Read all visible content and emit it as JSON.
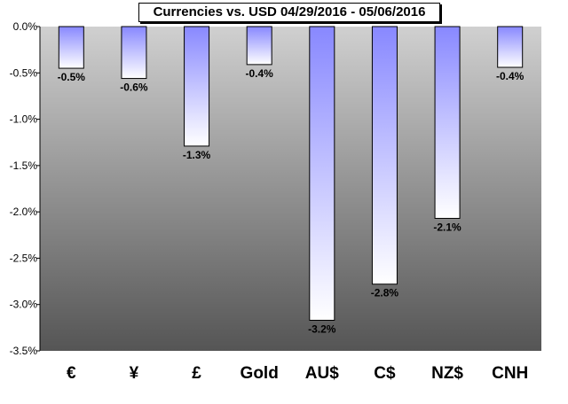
{
  "chart_data": {
    "type": "bar",
    "title": "Currencies vs. USD 04/29/2016 - 05/06/2016",
    "categories": [
      "€",
      "¥",
      "£",
      "Gold",
      "AU$",
      "C$",
      "NZ$",
      "CNH"
    ],
    "values": [
      -0.45,
      -0.56,
      -1.29,
      -0.41,
      -3.17,
      -2.78,
      -2.07,
      -0.44
    ],
    "data_labels": [
      "-0.5%",
      "-0.6%",
      "-1.3%",
      "-0.4%",
      "-3.2%",
      "-2.8%",
      "-2.1%",
      "-0.4%"
    ],
    "ylim": [
      -3.5,
      0
    ],
    "yticks": [
      0,
      -0.5,
      -1.0,
      -1.5,
      -2.0,
      -2.5,
      -3.0,
      -3.5
    ],
    "ytick_labels": [
      "0.0%",
      "-0.5%",
      "-1.0%",
      "-1.5%",
      "-2.0%",
      "-2.5%",
      "-3.0%",
      "-3.5%"
    ],
    "xlabel": "",
    "ylabel": "",
    "grid": false,
    "legend": "none",
    "colors": {
      "plot_bg_top": "#d0d0d0",
      "plot_bg_bottom": "#555555",
      "bar_top": "#8888ff",
      "bar_bottom": "#ffffff",
      "bar_border": "#000000"
    }
  }
}
